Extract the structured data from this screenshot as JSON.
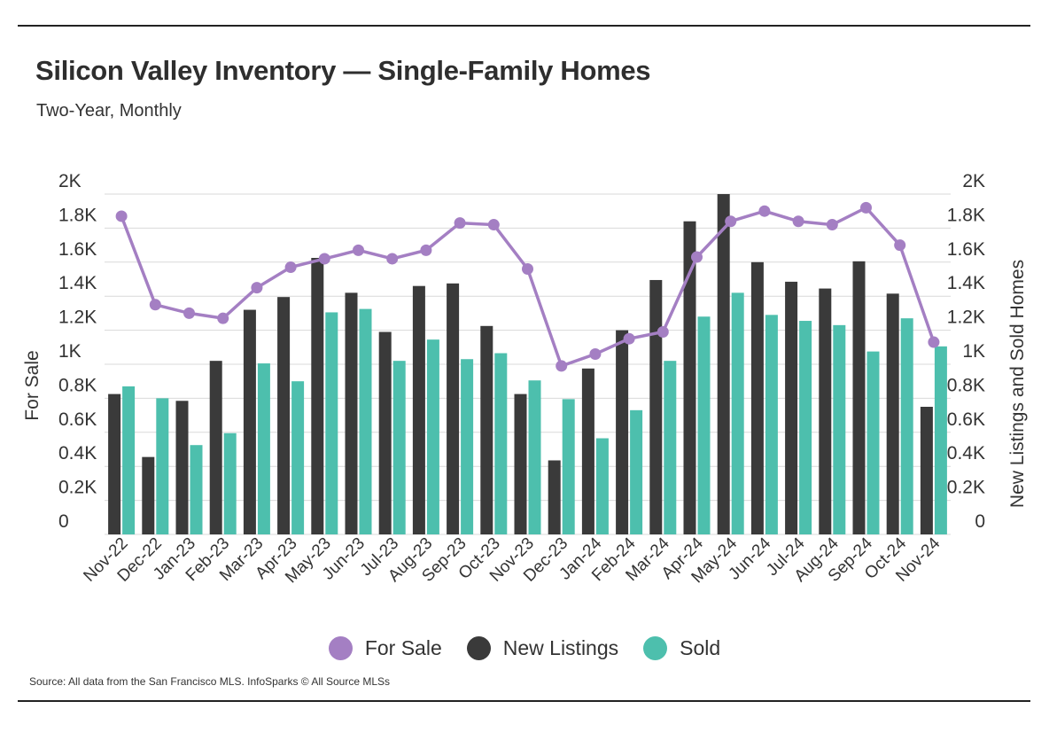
{
  "title": "Silicon Valley Inventory — Single-Family Homes",
  "subtitle": "Two-Year, Monthly",
  "source": "Source:  All data from the San Francisco MLS. InfoSparks © All Source MLSs",
  "colors": {
    "for_sale": "#a47fc3",
    "new_listings": "#3a3a3a",
    "sold": "#4dbfad",
    "grid": "#d9d9d9"
  },
  "chart_data": {
    "type": "bar",
    "ylabel_left": "For Sale",
    "ylabel_right": "New Listings and Sold Homes",
    "ylim": [
      0,
      2000
    ],
    "yticks": [
      "0",
      "0.2K",
      "0.4K",
      "0.6K",
      "0.8K",
      "1K",
      "1.2K",
      "1.4K",
      "1.6K",
      "1.8K",
      "2K"
    ],
    "categories": [
      "Nov-22",
      "Dec-22",
      "Jan-23",
      "Feb-23",
      "Mar-23",
      "Apr-23",
      "May-23",
      "Jun-23",
      "Jul-23",
      "Aug-23",
      "Sep-23",
      "Oct-23",
      "Nov-23",
      "Dec-23",
      "Jan-24",
      "Feb-24",
      "Mar-24",
      "Apr-24",
      "May-24",
      "Jun-24",
      "Jul-24",
      "Aug-24",
      "Sep-24",
      "Oct-24",
      "Nov-24"
    ],
    "series": [
      {
        "name": "New Listings",
        "kind": "bar",
        "values": [
          825,
          455,
          785,
          1020,
          1320,
          1395,
          1625,
          1420,
          1190,
          1460,
          1475,
          1225,
          825,
          435,
          975,
          1200,
          1495,
          1840,
          2000,
          1600,
          1485,
          1445,
          1605,
          1415,
          750
        ]
      },
      {
        "name": "Sold",
        "kind": "bar",
        "values": [
          870,
          800,
          525,
          595,
          1005,
          900,
          1305,
          1325,
          1020,
          1145,
          1030,
          1065,
          905,
          795,
          565,
          730,
          1020,
          1280,
          1420,
          1290,
          1255,
          1230,
          1075,
          1270,
          1105
        ]
      },
      {
        "name": "For Sale",
        "kind": "line",
        "values": [
          1870,
          1350,
          1300,
          1270,
          1450,
          1570,
          1620,
          1670,
          1620,
          1670,
          1830,
          1820,
          1560,
          990,
          1060,
          1150,
          1190,
          1630,
          1840,
          1900,
          1840,
          1820,
          1920,
          1700,
          1130
        ]
      }
    ],
    "legend": [
      "For Sale",
      "New Listings",
      "Sold"
    ],
    "legend_position": "bottom",
    "grid": true
  }
}
